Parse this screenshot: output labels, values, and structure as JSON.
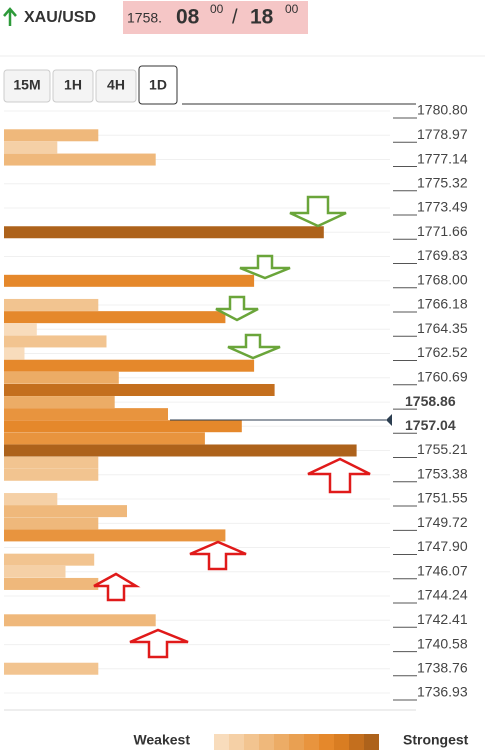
{
  "header": {
    "symbol": "XAU/USD",
    "bid": {
      "main": "1758.",
      "big": "08",
      "small": "00"
    },
    "separator": "/",
    "ask": {
      "big": "18",
      "small": "00"
    }
  },
  "tabs": [
    "15M",
    "1H",
    "4H",
    "1D"
  ],
  "active_tab": "1D",
  "scale": [
    {
      "value": 1780.8,
      "label": "1780.80"
    },
    {
      "value": 1778.97,
      "label": "1778.97"
    },
    {
      "value": 1777.14,
      "label": "1777.14"
    },
    {
      "value": 1775.32,
      "label": "1775.32"
    },
    {
      "value": 1773.49,
      "label": "1773.49"
    },
    {
      "value": 1771.66,
      "label": "1771.66"
    },
    {
      "value": 1769.83,
      "label": "1769.83"
    },
    {
      "value": 1768.0,
      "label": "1768.00"
    },
    {
      "value": 1766.18,
      "label": "1766.18"
    },
    {
      "value": 1764.35,
      "label": "1764.35"
    },
    {
      "value": 1762.52,
      "label": "1762.52"
    },
    {
      "value": 1760.69,
      "label": "1760.69"
    },
    {
      "value": 1758.86,
      "label": "1758.86",
      "current": true
    },
    {
      "value": 1757.04,
      "label": "1757.04",
      "current": true
    },
    {
      "value": 1755.21,
      "label": "1755.21"
    },
    {
      "value": 1753.38,
      "label": "1753.38"
    },
    {
      "value": 1751.55,
      "label": "1751.55"
    },
    {
      "value": 1749.72,
      "label": "1749.72"
    },
    {
      "value": 1747.9,
      "label": "1747.90"
    },
    {
      "value": 1746.07,
      "label": "1746.07"
    },
    {
      "value": 1744.24,
      "label": "1744.24"
    },
    {
      "value": 1742.41,
      "label": "1742.41"
    },
    {
      "value": 1740.58,
      "label": "1740.58"
    },
    {
      "value": 1738.76,
      "label": "1738.76"
    },
    {
      "value": 1736.93,
      "label": "1736.93"
    }
  ],
  "bars": [
    {
      "level": 1778.97,
      "length": 23,
      "strength": 4
    },
    {
      "level": 1778.06,
      "length": 13,
      "strength": 2
    },
    {
      "level": 1777.14,
      "length": 37,
      "strength": 4
    },
    {
      "level": 1771.66,
      "length": 78,
      "strength": 11
    },
    {
      "level": 1768.0,
      "length": 61,
      "strength": 8
    },
    {
      "level": 1766.18,
      "length": 23,
      "strength": 3
    },
    {
      "level": 1765.26,
      "length": 54,
      "strength": 8
    },
    {
      "level": 1764.35,
      "length": 8,
      "strength": 1
    },
    {
      "level": 1763.43,
      "length": 25,
      "strength": 3
    },
    {
      "level": 1762.52,
      "length": 5,
      "strength": 1
    },
    {
      "level": 1761.6,
      "length": 61,
      "strength": 8
    },
    {
      "level": 1760.69,
      "length": 28,
      "strength": 5
    },
    {
      "level": 1759.77,
      "length": 66,
      "strength": 10
    },
    {
      "level": 1758.86,
      "length": 27,
      "strength": 5
    },
    {
      "level": 1757.95,
      "length": 40,
      "strength": 7
    },
    {
      "level": 1757.04,
      "length": 58,
      "strength": 8
    },
    {
      "level": 1756.12,
      "length": 49,
      "strength": 7
    },
    {
      "level": 1755.21,
      "length": 86,
      "strength": 11
    },
    {
      "level": 1754.29,
      "length": 23,
      "strength": 3
    },
    {
      "level": 1753.38,
      "length": 23,
      "strength": 3
    },
    {
      "level": 1751.55,
      "length": 13,
      "strength": 2
    },
    {
      "level": 1750.64,
      "length": 30,
      "strength": 4
    },
    {
      "level": 1749.72,
      "length": 23,
      "strength": 4
    },
    {
      "level": 1748.81,
      "length": 54,
      "strength": 7
    },
    {
      "level": 1746.98,
      "length": 22,
      "strength": 3
    },
    {
      "level": 1746.07,
      "length": 15,
      "strength": 2
    },
    {
      "level": 1745.15,
      "length": 23,
      "strength": 4
    },
    {
      "level": 1742.41,
      "length": 37,
      "strength": 4
    },
    {
      "level": 1738.76,
      "length": 23,
      "strength": 3
    }
  ],
  "legend": {
    "weak": "Weakest",
    "strong": "Strongest",
    "colors": [
      "#f8dcbc",
      "#f5d0a6",
      "#f2c490",
      "#efb87b",
      "#ecac66",
      "#e9a052",
      "#e8943e",
      "#e5882b",
      "#d97d22",
      "#c46f1e",
      "#ad621b"
    ]
  }
}
